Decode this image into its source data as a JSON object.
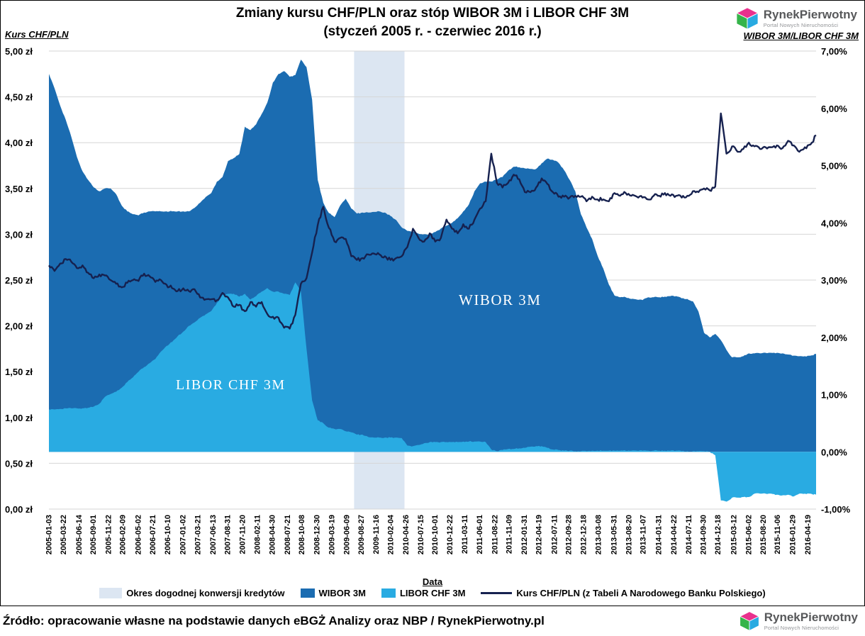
{
  "header": {
    "title_line1": "Zmiany kursu CHF/PLN oraz stóp WIBOR 3M i LIBOR CHF 3M",
    "title_line2": "(styczeń 2005 r. - czerwiec 2016 r.)",
    "left_axis_title": "Kurs CHF/PLN",
    "right_axis_title": "WIBOR 3M/LIBOR CHF 3M"
  },
  "logo": {
    "name": "RynekPierwotny",
    "tagline": "Portal Nowych Nieruchomości"
  },
  "footer": {
    "source": "Źródło: opracowanie własne na podstawie danych eBGŻ Analizy oraz NBP / RynekPierwotny.pl"
  },
  "annotations": {
    "wibor_label": "WIBOR 3M",
    "libor_label": "LIBOR CHF 3M"
  },
  "legend": [
    {
      "label": "Okres dogodnej konwersji kredytów",
      "type": "band",
      "color": "#dce6f2"
    },
    {
      "label": "WIBOR 3M",
      "type": "area",
      "color": "#1b6cb1"
    },
    {
      "label": "LIBOR CHF 3M",
      "type": "area",
      "color": "#29abe2"
    },
    {
      "label": "Kurs CHF/PLN (z Tabeli A Narodowego Banku Polskiego)",
      "type": "line",
      "color": "#16214f"
    }
  ],
  "chart_data": {
    "type": "area+line",
    "title": "Zmiany kursu CHF/PLN oraz stóp WIBOR 3M i LIBOR CHF 3M (styczeń 2005 r. - czerwiec 2016 r.)",
    "x_axis_label": "Data",
    "x_interval": "monthly",
    "x_start": "2005-01",
    "x_end": "2016-06",
    "x_tick_labels": [
      "2005-01-03",
      "2005-03-22",
      "2005-06-14",
      "2005-09-01",
      "2005-11-22",
      "2006-02-09",
      "2006-05-02",
      "2006-07-21",
      "2006-10-10",
      "2007-01-02",
      "2007-03-21",
      "2007-06-13",
      "2007-08-31",
      "2007-11-20",
      "2008-02-11",
      "2008-04-30",
      "2008-07-21",
      "2008-10-08",
      "2008-12-30",
      "2009-03-19",
      "2009-06-09",
      "2009-08-27",
      "2009-11-16",
      "2010-02-04",
      "2010-04-26",
      "2010-07-15",
      "2010-10-01",
      "2010-12-22",
      "2011-03-11",
      "2011-06-01",
      "2011-08-22",
      "2011-11-09",
      "2012-01-31",
      "2012-04-19",
      "2012-07-11",
      "2012-09-28",
      "2012-12-18",
      "2013-03-08",
      "2013-05-31",
      "2013-08-20",
      "2013-11-07",
      "2014-01-31",
      "2014-04-22",
      "2014-07-11",
      "2014-09-30",
      "2014-12-18",
      "2015-03-12",
      "2015-06-02",
      "2015-08-20",
      "2015-11-06",
      "2016-01-29",
      "2016-04-19"
    ],
    "left_axis": {
      "label": "Kurs CHF/PLN",
      "unit": "zł",
      "min": 0,
      "max": 5,
      "ticks": [
        "5,00 zł",
        "4,50 zł",
        "4,00 zł",
        "3,50 zł",
        "3,00 zł",
        "2,50 zł",
        "2,00 zł",
        "1,50 zł",
        "1,00 zł",
        "0,50 zł",
        "0,00 zł"
      ]
    },
    "right_axis": {
      "label": "WIBOR 3M/LIBOR CHF 3M",
      "unit": "%",
      "min": -1,
      "max": 7,
      "ticks": [
        "7,00%",
        "6,00%",
        "5,00%",
        "4,00%",
        "3,00%",
        "2,00%",
        "1,00%",
        "0,00%",
        "-1,00%"
      ]
    },
    "grid": "horizontal",
    "legend_position": "bottom",
    "band": {
      "label": "Okres dogodnej konwersji kredytów",
      "start_date": "2009-07",
      "end_date": "2010-03",
      "start_index": 54.5,
      "end_index": 63.5,
      "color": "#dce6f2"
    },
    "series": [
      {
        "name": "WIBOR 3M",
        "kind": "area",
        "axis": "right",
        "color": "#1b6cb1",
        "values": [
          6.6,
          6.35,
          6.05,
          5.8,
          5.5,
          5.15,
          4.9,
          4.75,
          4.62,
          4.55,
          4.6,
          4.6,
          4.5,
          4.3,
          4.2,
          4.15,
          4.13,
          4.18,
          4.2,
          4.2,
          4.2,
          4.2,
          4.2,
          4.2,
          4.2,
          4.2,
          4.26,
          4.35,
          4.45,
          4.52,
          4.72,
          4.8,
          5.08,
          5.13,
          5.2,
          5.68,
          5.62,
          5.72,
          5.9,
          6.1,
          6.45,
          6.6,
          6.65,
          6.55,
          6.58,
          6.85,
          6.72,
          6.15,
          4.75,
          4.35,
          4.17,
          4.1,
          4.3,
          4.42,
          4.25,
          4.16,
          4.18,
          4.18,
          4.19,
          4.2,
          4.18,
          4.12,
          4.05,
          3.92,
          3.86,
          3.85,
          3.81,
          3.8,
          3.8,
          3.84,
          3.9,
          3.95,
          4.0,
          4.08,
          4.2,
          4.32,
          4.55,
          4.69,
          4.72,
          4.72,
          4.76,
          4.8,
          4.91,
          4.98,
          4.97,
          4.95,
          4.94,
          4.94,
          5.04,
          5.12,
          5.1,
          5.05,
          4.92,
          4.75,
          4.55,
          4.15,
          3.92,
          3.72,
          3.42,
          3.2,
          2.92,
          2.73,
          2.7,
          2.7,
          2.67,
          2.66,
          2.65,
          2.7,
          2.7,
          2.7,
          2.71,
          2.72,
          2.72,
          2.68,
          2.67,
          2.63,
          2.45,
          2.08,
          2.0,
          2.06,
          1.95,
          1.78,
          1.65,
          1.65,
          1.67,
          1.72,
          1.72,
          1.72,
          1.73,
          1.73,
          1.73,
          1.72,
          1.7,
          1.68,
          1.67,
          1.67,
          1.68,
          1.71
        ]
      },
      {
        "name": "LIBOR CHF 3M",
        "kind": "area",
        "axis": "right",
        "color": "#29abe2",
        "values": [
          0.74,
          0.74,
          0.75,
          0.76,
          0.76,
          0.76,
          0.76,
          0.77,
          0.79,
          0.84,
          0.96,
          1.01,
          1.05,
          1.12,
          1.22,
          1.3,
          1.4,
          1.48,
          1.55,
          1.62,
          1.75,
          1.85,
          1.92,
          2.02,
          2.1,
          2.2,
          2.26,
          2.34,
          2.4,
          2.46,
          2.6,
          2.74,
          2.76,
          2.76,
          2.71,
          2.76,
          2.66,
          2.72,
          2.8,
          2.86,
          2.8,
          2.8,
          2.76,
          2.74,
          2.96,
          2.8,
          1.8,
          0.9,
          0.55,
          0.5,
          0.42,
          0.4,
          0.4,
          0.36,
          0.34,
          0.3,
          0.3,
          0.26,
          0.25,
          0.25,
          0.25,
          0.25,
          0.25,
          0.24,
          0.11,
          0.1,
          0.12,
          0.15,
          0.17,
          0.17,
          0.17,
          0.17,
          0.17,
          0.17,
          0.18,
          0.18,
          0.18,
          0.18,
          0.17,
          0.04,
          0.01,
          0.03,
          0.05,
          0.05,
          0.06,
          0.07,
          0.09,
          0.1,
          0.1,
          0.07,
          0.04,
          0.03,
          0.02,
          0.02,
          0.01,
          0.01,
          0.01,
          0.02,
          0.02,
          0.02,
          0.02,
          0.02,
          0.02,
          0.02,
          0.02,
          0.02,
          0.02,
          0.02,
          0.02,
          0.02,
          0.02,
          0.02,
          0.02,
          0.01,
          0.01,
          0.01,
          0.01,
          0.01,
          0.0,
          -0.06,
          -0.85,
          -0.87,
          -0.8,
          -0.8,
          -0.79,
          -0.79,
          -0.73,
          -0.73,
          -0.73,
          -0.73,
          -0.75,
          -0.76,
          -0.75,
          -0.78,
          -0.73,
          -0.73,
          -0.73,
          -0.75
        ]
      },
      {
        "name": "Kurs CHF/PLN (z Tabeli A Narodowego Banku Polskiego)",
        "kind": "line",
        "axis": "left",
        "color": "#16214f",
        "values": [
          2.66,
          2.6,
          2.68,
          2.73,
          2.7,
          2.63,
          2.66,
          2.58,
          2.52,
          2.56,
          2.55,
          2.5,
          2.46,
          2.42,
          2.47,
          2.5,
          2.49,
          2.57,
          2.54,
          2.48,
          2.5,
          2.45,
          2.41,
          2.38,
          2.41,
          2.38,
          2.4,
          2.31,
          2.29,
          2.29,
          2.28,
          2.36,
          2.31,
          2.21,
          2.23,
          2.16,
          2.26,
          2.21,
          2.26,
          2.13,
          2.1,
          2.09,
          1.98,
          1.97,
          2.12,
          2.46,
          2.52,
          2.8,
          3.1,
          3.3,
          3.07,
          2.92,
          2.96,
          2.95,
          2.76,
          2.72,
          2.74,
          2.78,
          2.79,
          2.78,
          2.76,
          2.72,
          2.74,
          2.76,
          2.86,
          3.06,
          2.96,
          2.92,
          3.01,
          2.92,
          2.96,
          3.16,
          3.06,
          3.01,
          3.11,
          3.06,
          3.16,
          3.28,
          3.36,
          3.88,
          3.56,
          3.51,
          3.56,
          3.65,
          3.6,
          3.46,
          3.46,
          3.51,
          3.61,
          3.55,
          3.46,
          3.41,
          3.41,
          3.4,
          3.42,
          3.41,
          3.36,
          3.41,
          3.38,
          3.38,
          3.36,
          3.45,
          3.42,
          3.45,
          3.42,
          3.41,
          3.4,
          3.38,
          3.42,
          3.42,
          3.45,
          3.42,
          3.42,
          3.4,
          3.42,
          3.47,
          3.46,
          3.5,
          3.48,
          3.52,
          4.32,
          3.88,
          3.96,
          3.9,
          3.93,
          4.0,
          3.96,
          3.93,
          3.95,
          3.95,
          3.97,
          3.94,
          4.02,
          3.97,
          3.9,
          3.95,
          3.98,
          4.08
        ]
      }
    ]
  }
}
